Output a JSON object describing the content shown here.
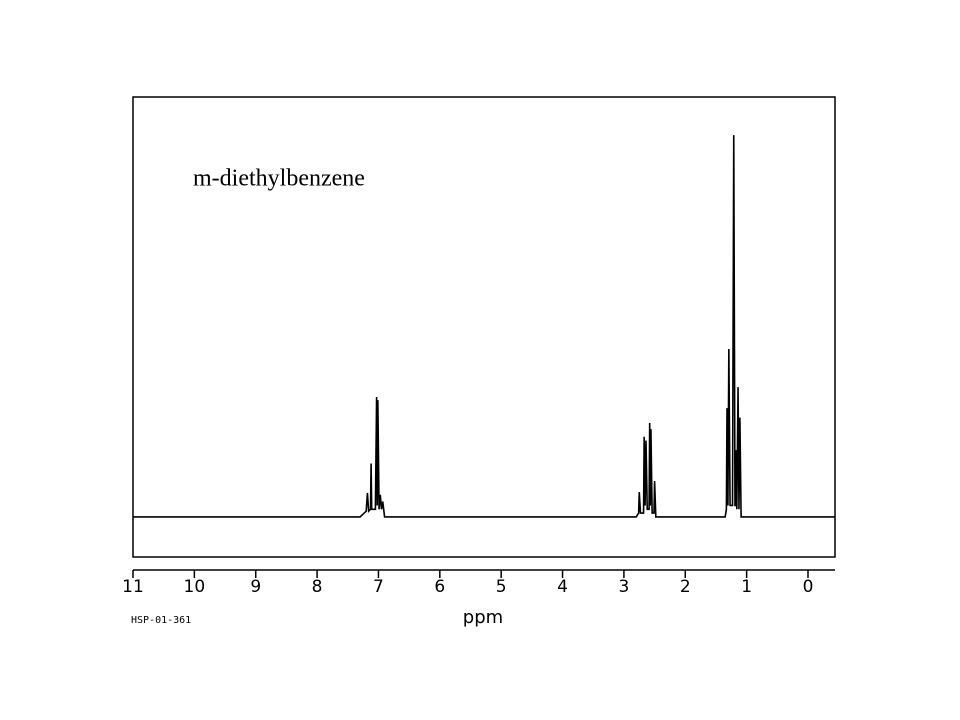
{
  "chart_data": {
    "type": "line",
    "annotation": "m-diethylbenzene",
    "x_label": "ppm",
    "code": "HSP-01-361",
    "xlim": [
      11,
      -0.44
    ],
    "ylim": [
      -10.5,
      110
    ],
    "xticks": [
      11,
      10,
      9,
      8,
      7,
      6,
      5,
      4,
      3,
      2,
      1,
      0
    ],
    "color": "#000000",
    "x": [
      11,
      7.3,
      7.2,
      7.18,
      7.16,
      7.13,
      7.12,
      7.11,
      7.05,
      7.03,
      7.02,
      7.01,
      6.99,
      6.97,
      6.95,
      6.93,
      6.9,
      2.8,
      2.76,
      2.75,
      2.73,
      2.68,
      2.67,
      2.655,
      2.64,
      2.62,
      2.59,
      2.58,
      2.57,
      2.56,
      2.54,
      2.51,
      2.5,
      2.48,
      1.35,
      1.33,
      1.32,
      1.305,
      1.29,
      1.27,
      1.23,
      1.21,
      1.19,
      1.175,
      1.17,
      1.16,
      1.14,
      1.125,
      1.11,
      1.09,
      -0.44
    ],
    "values": [
      0,
      0,
      1.5,
      6.3,
      1.5,
      2,
      14,
      2,
      2,
      31.4,
      3,
      30.6,
      2,
      5.8,
      2,
      4,
      0,
      0,
      1,
      6.5,
      1,
      1,
      21,
      3,
      20,
      2,
      2,
      24.6,
      3,
      23,
      1,
      1,
      9.4,
      0,
      0,
      2,
      28.5,
      3,
      44,
      3,
      3,
      100,
      3,
      3,
      17.5,
      2,
      34,
      2,
      26,
      0,
      0
    ]
  }
}
